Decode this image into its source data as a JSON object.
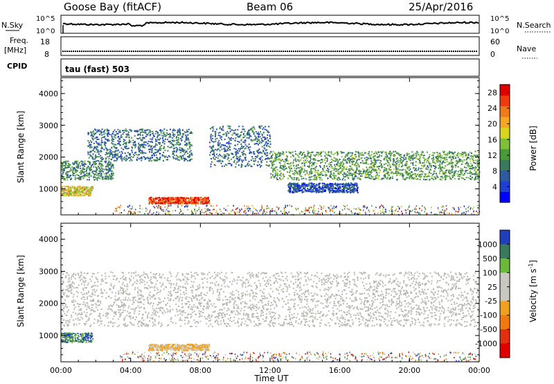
{
  "header": {
    "station": "Goose Bay (fitACF)",
    "beam": "Beam 06",
    "date": "25/Apr/2016"
  },
  "noise_panel": {
    "left_label": "N.Sky",
    "left_ticks": [
      "10^5",
      "10^0"
    ],
    "right_label": "N.Search",
    "right_ticks": [
      "10^5",
      "10^0"
    ]
  },
  "freq_panel": {
    "left_label_1": "Freq.",
    "left_label_2": "[MHz]",
    "left_ticks": [
      "18",
      "8"
    ],
    "right_label": "Nave",
    "right_ticks": [
      "60",
      "0"
    ]
  },
  "cpid": {
    "label": "CPID",
    "mode": "tau (fast) 503"
  },
  "colors": {
    "power_scale": [
      "#0000ff",
      "#1f3fd0",
      "#2e5aa0",
      "#3a7a5c",
      "#4a9a3a",
      "#7ec03a",
      "#d7d51f",
      "#f5a623",
      "#f07a1a",
      "#ee3a10",
      "#e00000"
    ],
    "velocity_scale": [
      "#1f3fbf",
      "#3a7a5c",
      "#6aba3a",
      "#c8c8c0",
      "#c8c8c0",
      "#f0a020",
      "#f07a10",
      "#e03010",
      "#e00000"
    ],
    "ground_scatter": "#b8b8b0"
  },
  "chart_data": [
    {
      "type": "heatmap",
      "title": "",
      "xlabel": "Time UT",
      "ylabel": "Slant Range [km]",
      "x_ticks": [
        "00:00",
        "04:00",
        "08:00",
        "12:00",
        "16:00",
        "20:00",
        "00:00"
      ],
      "y_ticks": [
        "1000",
        "2000",
        "3000",
        "4000"
      ],
      "xlim_hours": [
        0,
        24
      ],
      "ylim_km": [
        180,
        4500
      ],
      "colorbar_label": "Power [dB]",
      "colorbar_ticks": [
        "4",
        "8",
        "12",
        "16",
        "20",
        "24",
        "28"
      ],
      "colorbar_range": [
        0,
        30
      ],
      "echo_bands": [
        {
          "t_start": 0.0,
          "t_end": 1.8,
          "r_start_km": 800,
          "r_end_km": 1100,
          "level_db": 18
        },
        {
          "t_start": 0.0,
          "t_end": 3.0,
          "r_start_km": 1300,
          "r_end_km": 1900,
          "level_db": 10
        },
        {
          "t_start": 1.5,
          "t_end": 7.5,
          "r_start_km": 1900,
          "r_end_km": 2900,
          "level_db": 8
        },
        {
          "t_start": 5.0,
          "t_end": 8.5,
          "r_start_km": 550,
          "r_end_km": 750,
          "level_db": 26
        },
        {
          "t_start": 8.5,
          "t_end": 12.0,
          "r_start_km": 1700,
          "r_end_km": 3000,
          "level_db": 8
        },
        {
          "t_start": 12.0,
          "t_end": 24.0,
          "r_start_km": 1300,
          "r_end_km": 2200,
          "level_db": 12
        },
        {
          "t_start": 13.0,
          "t_end": 17.0,
          "r_start_km": 900,
          "r_end_km": 1200,
          "level_db": 6
        }
      ]
    },
    {
      "type": "heatmap",
      "title": "",
      "xlabel": "Time UT",
      "ylabel": "Slant Range [km]",
      "x_ticks": [
        "00:00",
        "04:00",
        "08:00",
        "12:00",
        "16:00",
        "20:00",
        "00:00"
      ],
      "y_ticks": [
        "1000",
        "2000",
        "3000",
        "4000"
      ],
      "xlim_hours": [
        0,
        24
      ],
      "ylim_km": [
        180,
        4500
      ],
      "colorbar_label": "Velocity [m s",
      "colorbar_unit_sup": "-1",
      "colorbar_unit_end": "]",
      "colorbar_ticks": [
        "1000",
        "500",
        "100",
        "25",
        "-25",
        "-100",
        "-500",
        "-1000"
      ],
      "echo_bands": [
        {
          "t_start": 0.0,
          "t_end": 1.8,
          "r_start_km": 800,
          "r_end_km": 1100,
          "velocity": "mixed"
        },
        {
          "t_start": 0.0,
          "t_end": 24.0,
          "r_start_km": 1300,
          "r_end_km": 3000,
          "velocity": "ground_scatter"
        },
        {
          "t_start": 5.0,
          "t_end": 8.5,
          "r_start_km": 550,
          "r_end_km": 750,
          "velocity": "-100"
        }
      ]
    }
  ]
}
